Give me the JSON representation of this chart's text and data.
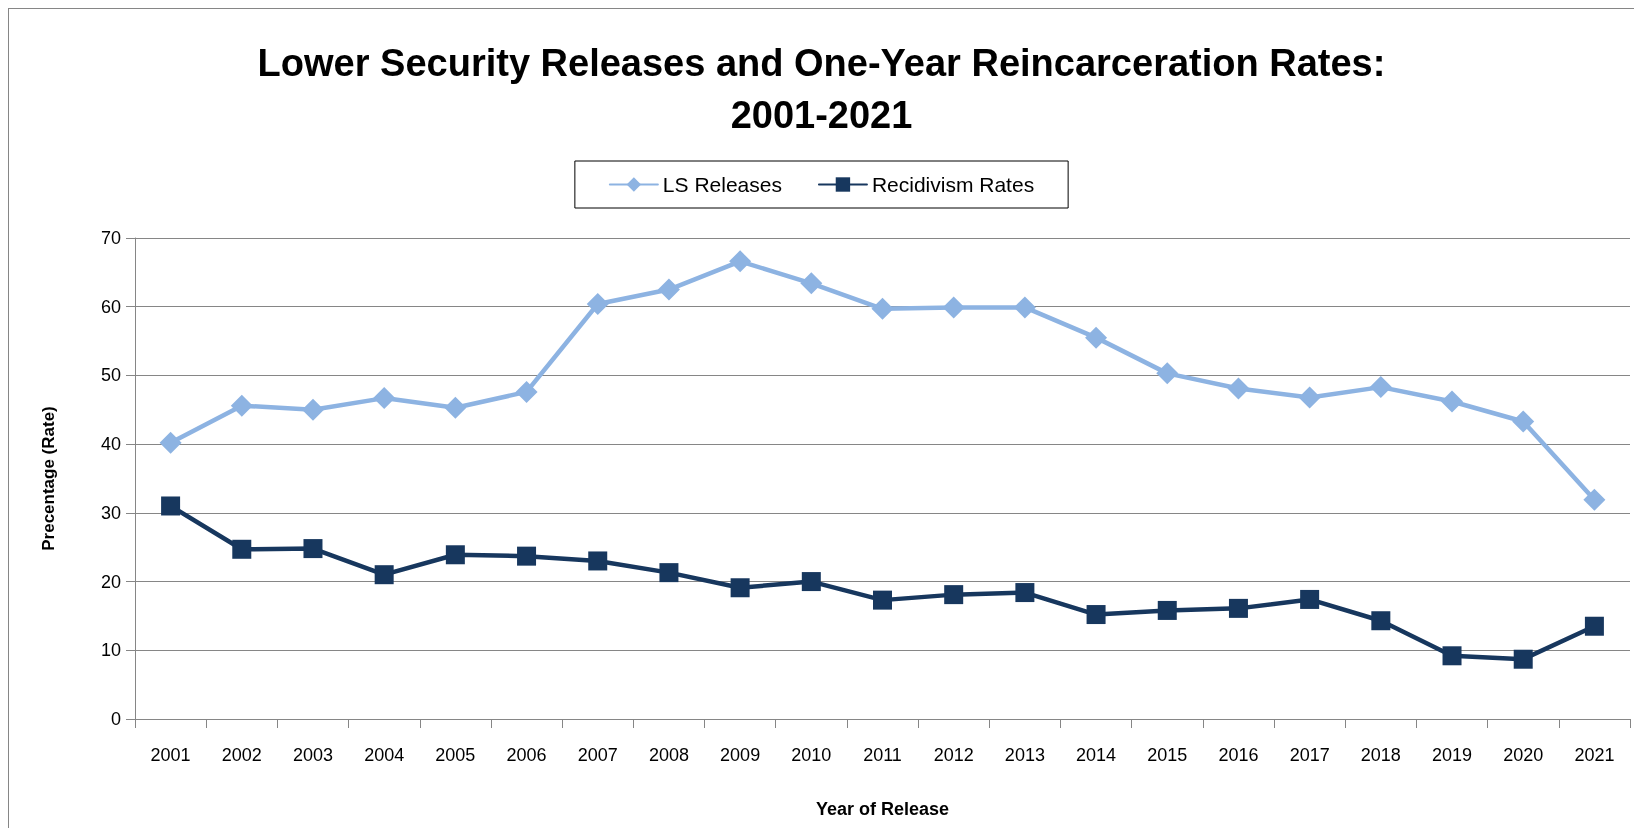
{
  "chart_data": {
    "type": "line",
    "title": "Lower Security Releases and One-Year Reincarceration Rates: 2001-2021",
    "xlabel": "Year of Release",
    "ylabel": "Precentage (Rate)",
    "categories": [
      "2001",
      "2002",
      "2003",
      "2004",
      "2005",
      "2006",
      "2007",
      "2008",
      "2009",
      "2010",
      "2011",
      "2012",
      "2013",
      "2014",
      "2015",
      "2016",
      "2017",
      "2018",
      "2019",
      "2020",
      "2021"
    ],
    "series": [
      {
        "name": "LS Releases",
        "color": "#8db3e2",
        "marker": "diamond",
        "values": [
          40.2,
          45.6,
          45.0,
          46.7,
          45.3,
          47.6,
          60.4,
          62.5,
          66.6,
          63.4,
          59.7,
          59.9,
          59.9,
          55.5,
          50.3,
          48.1,
          46.8,
          48.3,
          46.2,
          43.3,
          31.9
        ]
      },
      {
        "name": "Recidivism Rates",
        "color": "#17375e",
        "marker": "square",
        "values": [
          31.0,
          24.7,
          24.8,
          21.0,
          23.9,
          23.7,
          23.0,
          21.3,
          19.1,
          20.0,
          17.3,
          18.1,
          18.4,
          15.2,
          15.8,
          16.1,
          17.4,
          14.3,
          9.2,
          8.7,
          13.5
        ]
      }
    ],
    "ylim": [
      0,
      70
    ],
    "yticks": [
      0,
      10,
      20,
      30,
      40,
      50,
      60,
      70
    ],
    "grid": "y",
    "legend": "top",
    "line_style": "solid"
  }
}
